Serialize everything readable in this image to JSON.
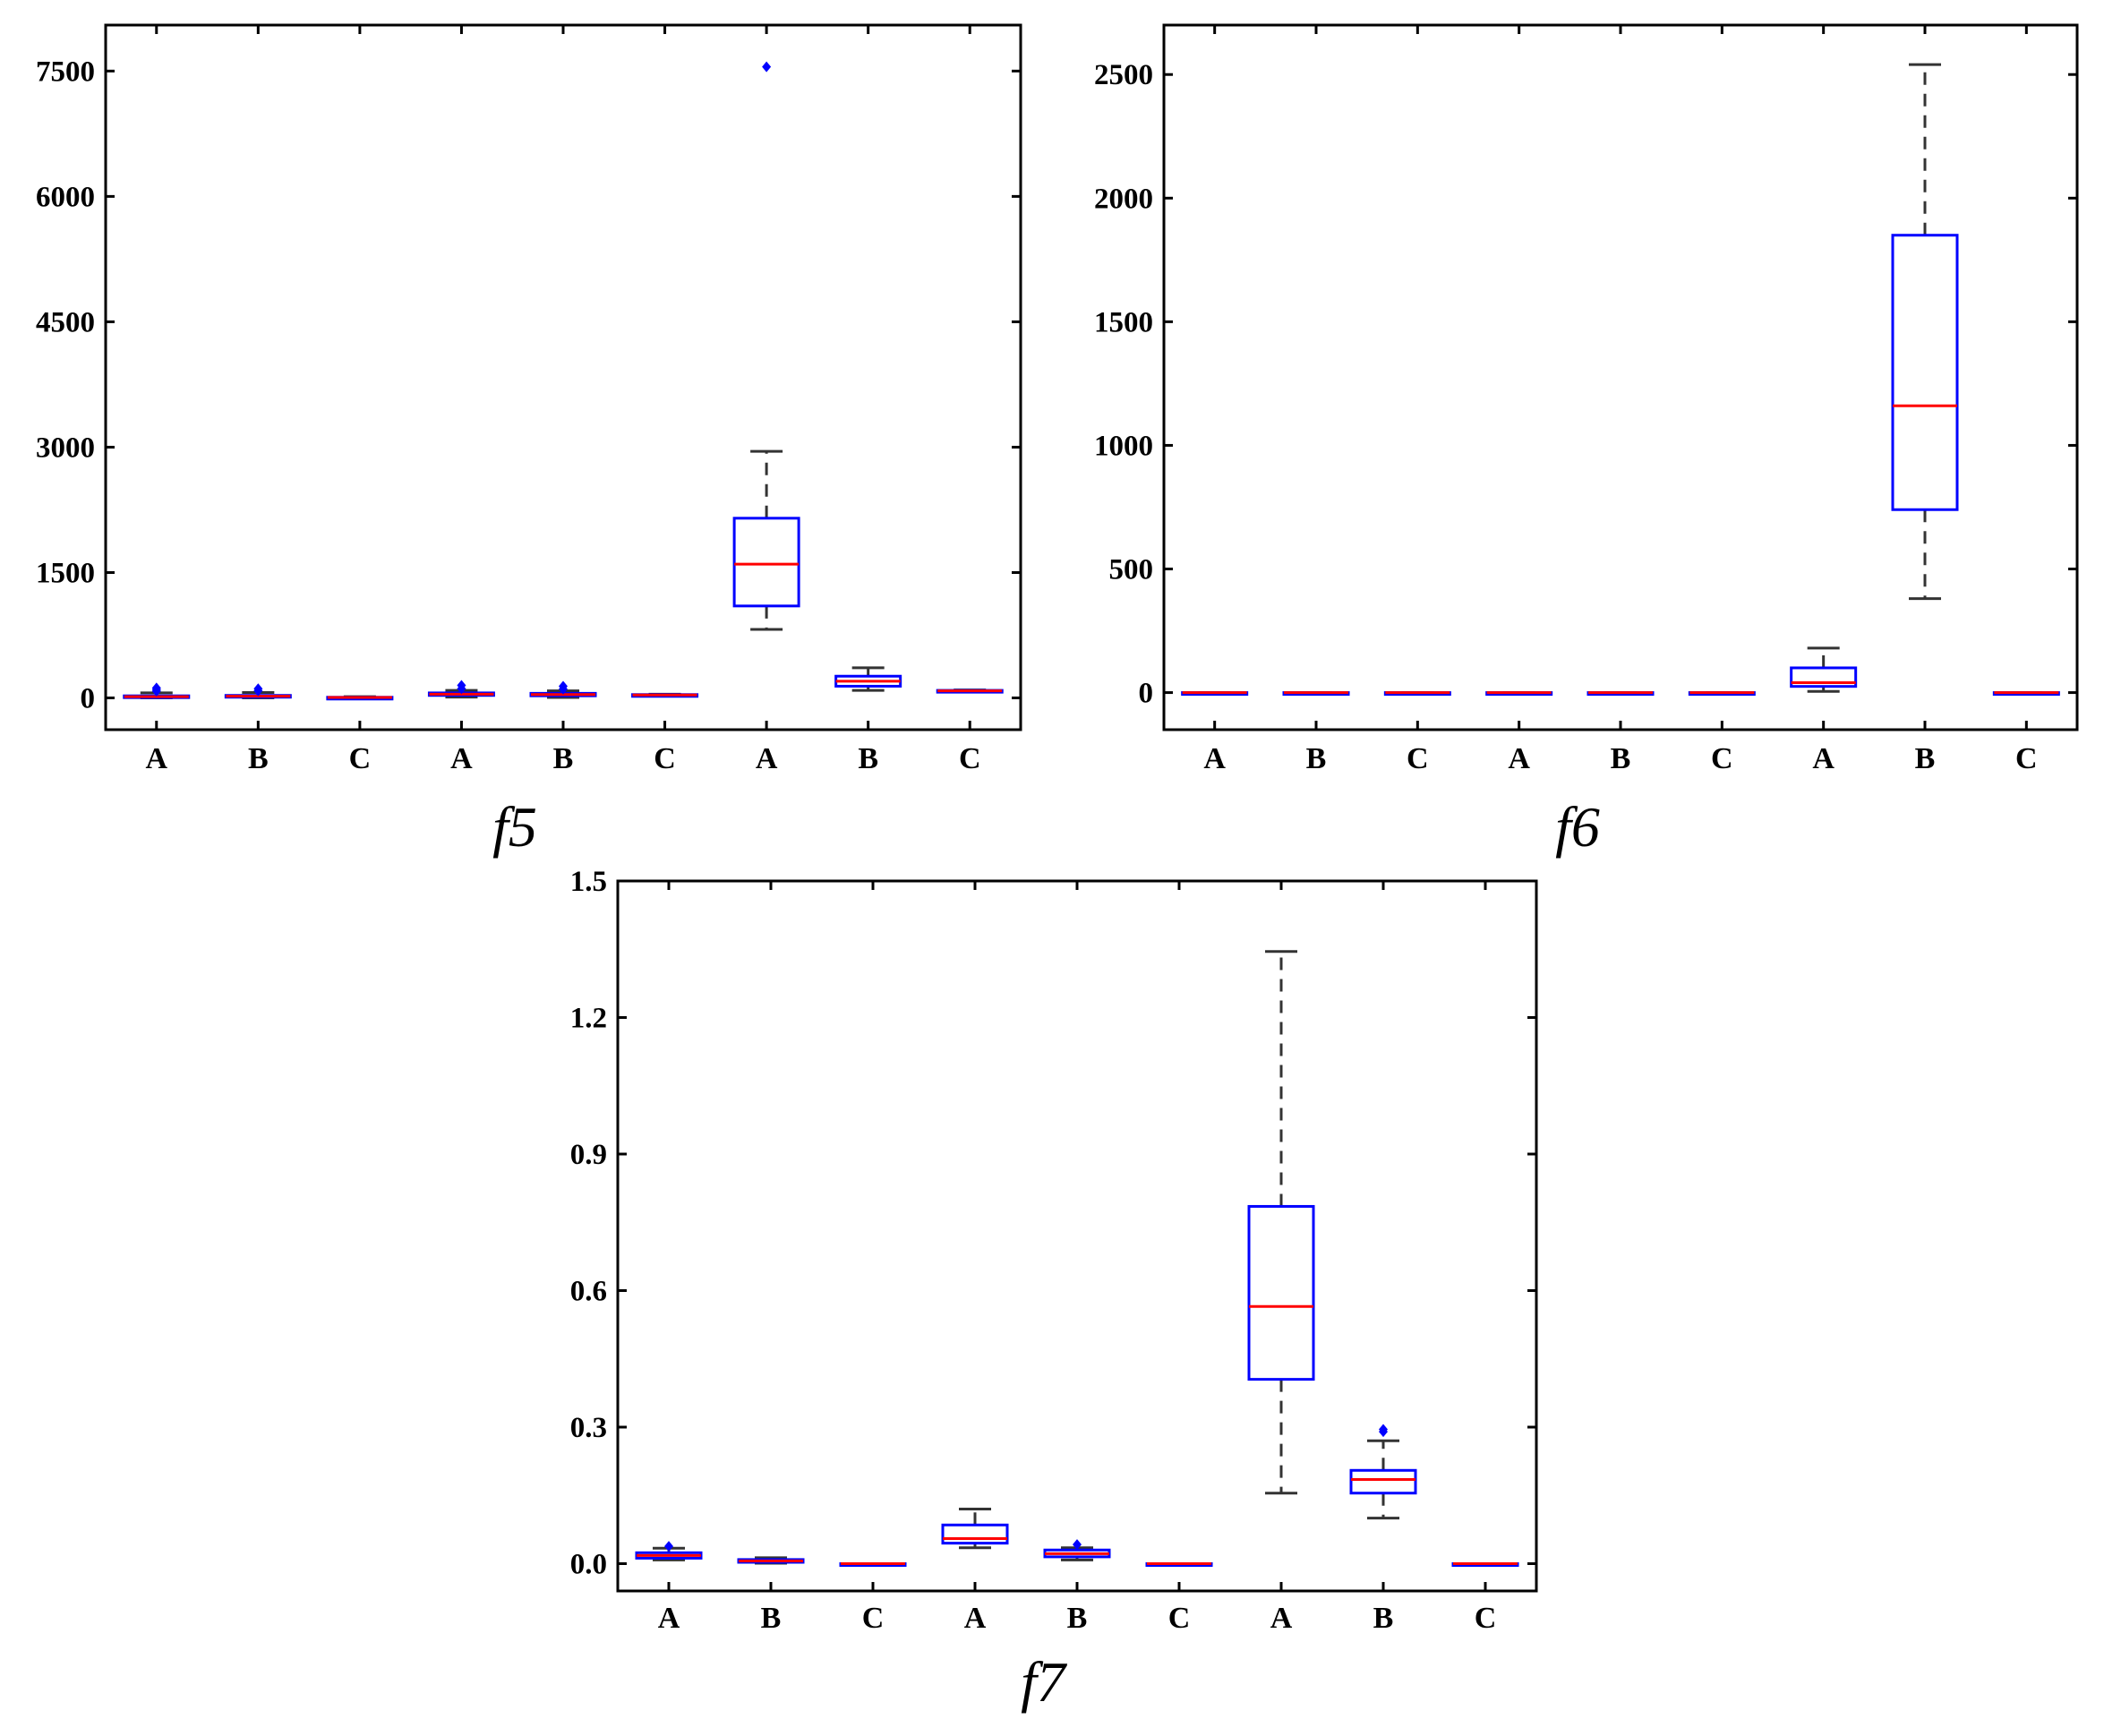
{
  "colors": {
    "box": "#0000ff",
    "median": "#ff0000",
    "whisker": "#333333",
    "outlier": "#0000ff",
    "axis": "#000000"
  },
  "chart_data": [
    {
      "type": "box",
      "title": "f5",
      "categories": [
        "A",
        "B",
        "C",
        "A",
        "B",
        "C",
        "A",
        "B",
        "C"
      ],
      "ylim": [
        -380,
        8050
      ],
      "yticks": [
        0,
        1500,
        3000,
        4500,
        6000,
        7500
      ],
      "ytick_labels": [
        "0",
        "1500",
        "3000",
        "4500",
        "6000",
        "7500"
      ],
      "grid": false,
      "boxes": [
        {
          "q1": 5,
          "median": 15,
          "q3": 25,
          "whislo": 0,
          "whishi": 60,
          "outliers": [
            80,
            100,
            120
          ]
        },
        {
          "q1": 10,
          "median": 20,
          "q3": 30,
          "whislo": 0,
          "whishi": 65,
          "outliers": [
            85,
            110
          ]
        },
        {
          "q1": 2,
          "median": 5,
          "q3": 8,
          "whislo": 0,
          "whishi": 15,
          "outliers": []
        },
        {
          "q1": 30,
          "median": 45,
          "q3": 60,
          "whislo": 10,
          "whishi": 90,
          "outliers": [
            110,
            150
          ]
        },
        {
          "q1": 25,
          "median": 40,
          "q3": 55,
          "whislo": 5,
          "whishi": 85,
          "outliers": [
            105,
            140
          ]
        },
        {
          "q1": 30,
          "median": 35,
          "q3": 40,
          "whislo": 25,
          "whishi": 45,
          "outliers": []
        },
        {
          "q1": 1100,
          "median": 1600,
          "q3": 2150,
          "whislo": 820,
          "whishi": 2950,
          "outliers": [
            7550
          ]
        },
        {
          "q1": 140,
          "median": 200,
          "q3": 260,
          "whislo": 90,
          "whishi": 360,
          "outliers": []
        },
        {
          "q1": 80,
          "median": 85,
          "q3": 90,
          "whislo": 75,
          "whishi": 95,
          "outliers": []
        }
      ]
    },
    {
      "type": "box",
      "title": "f6",
      "categories": [
        "A",
        "B",
        "C",
        "A",
        "B",
        "C",
        "A",
        "B",
        "C"
      ],
      "ylim": [
        -150,
        2700
      ],
      "yticks": [
        0,
        500,
        1000,
        1500,
        2000,
        2500
      ],
      "ytick_labels": [
        "0",
        "500",
        "1000",
        "1500",
        "2000",
        "2500"
      ],
      "grid": false,
      "boxes": [
        {
          "q1": 0,
          "median": 0,
          "q3": 0,
          "whislo": 0,
          "whishi": 0,
          "outliers": []
        },
        {
          "q1": 0,
          "median": 0,
          "q3": 0,
          "whislo": 0,
          "whishi": 0,
          "outliers": []
        },
        {
          "q1": 0,
          "median": 0,
          "q3": 0,
          "whislo": 0,
          "whishi": 0,
          "outliers": []
        },
        {
          "q1": 0,
          "median": 0,
          "q3": 0,
          "whislo": 0,
          "whishi": 0,
          "outliers": []
        },
        {
          "q1": 0,
          "median": 0,
          "q3": 0,
          "whislo": 0,
          "whishi": 0,
          "outliers": []
        },
        {
          "q1": 0,
          "median": 0,
          "q3": 0,
          "whislo": 0,
          "whishi": 0,
          "outliers": []
        },
        {
          "q1": 25,
          "median": 40,
          "q3": 100,
          "whislo": 5,
          "whishi": 180,
          "outliers": []
        },
        {
          "q1": 740,
          "median": 1160,
          "q3": 1850,
          "whislo": 380,
          "whishi": 2540,
          "outliers": []
        },
        {
          "q1": 0,
          "median": 0,
          "q3": 0,
          "whislo": 0,
          "whishi": 0,
          "outliers": []
        }
      ]
    },
    {
      "type": "box",
      "title": "f7",
      "categories": [
        "A",
        "B",
        "C",
        "A",
        "B",
        "C",
        "A",
        "B",
        "C"
      ],
      "ylim": [
        -0.06,
        1.5
      ],
      "yticks": [
        0.0,
        0.3,
        0.6,
        0.9,
        1.2,
        1.5
      ],
      "ytick_labels": [
        "0.0",
        "0.3",
        "0.6",
        "0.9",
        "1.2",
        "1.5"
      ],
      "grid": false,
      "boxes": [
        {
          "q1": 0.012,
          "median": 0.018,
          "q3": 0.024,
          "whislo": 0.008,
          "whishi": 0.034,
          "outliers": [
            0.038
          ]
        },
        {
          "q1": 0.003,
          "median": 0.006,
          "q3": 0.009,
          "whislo": 0.001,
          "whishi": 0.013,
          "outliers": []
        },
        {
          "q1": 0.0,
          "median": 0.0,
          "q3": 0.0,
          "whislo": 0.0,
          "whishi": 0.0,
          "outliers": []
        },
        {
          "q1": 0.045,
          "median": 0.055,
          "q3": 0.085,
          "whislo": 0.035,
          "whishi": 0.12,
          "outliers": []
        },
        {
          "q1": 0.015,
          "median": 0.022,
          "q3": 0.03,
          "whislo": 0.008,
          "whishi": 0.035,
          "outliers": [
            0.042
          ]
        },
        {
          "q1": 0.0,
          "median": 0.0,
          "q3": 0.0,
          "whislo": 0.0,
          "whishi": 0.0,
          "outliers": []
        },
        {
          "q1": 0.405,
          "median": 0.565,
          "q3": 0.785,
          "whislo": 0.155,
          "whishi": 1.345,
          "outliers": []
        },
        {
          "q1": 0.155,
          "median": 0.185,
          "q3": 0.205,
          "whislo": 0.1,
          "whishi": 0.27,
          "outliers": [
            0.29,
            0.295
          ]
        },
        {
          "q1": 0.0,
          "median": 0.0,
          "q3": 0.0,
          "whislo": 0.0,
          "whishi": 0.0,
          "outliers": []
        }
      ]
    }
  ]
}
